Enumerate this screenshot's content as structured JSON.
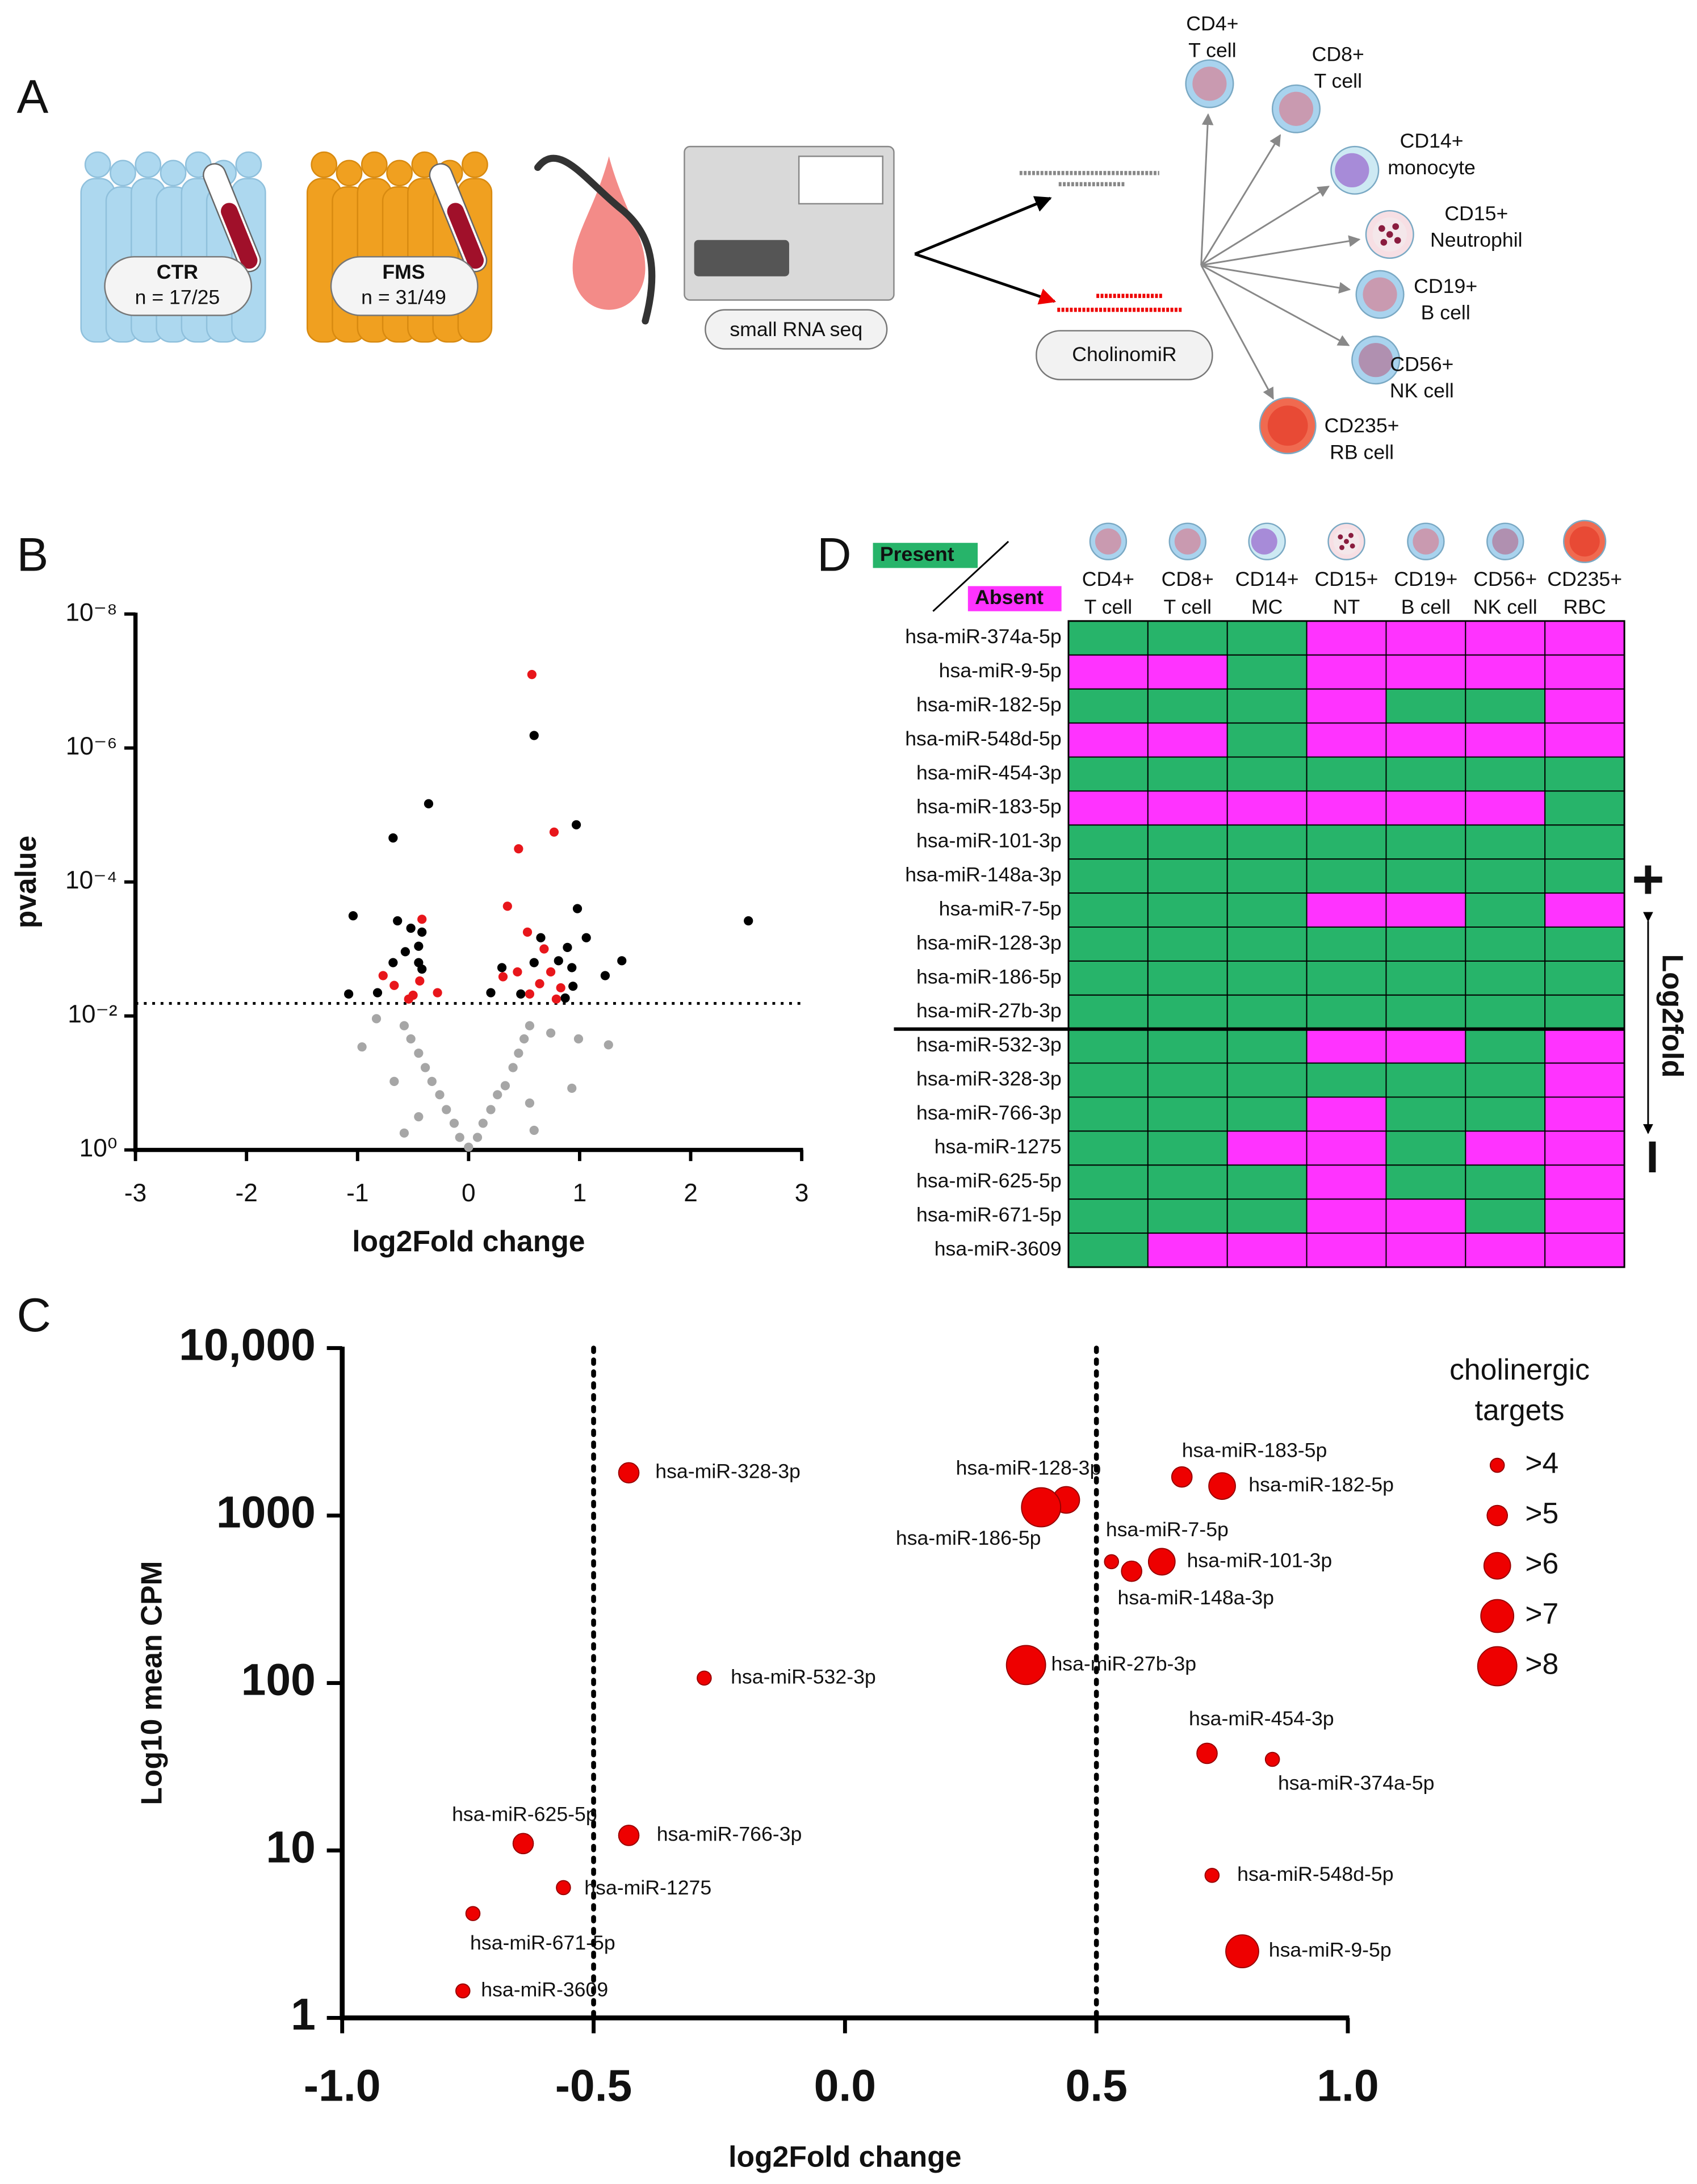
{
  "panel_a": {
    "letter": "A",
    "groups": [
      {
        "name": "CTR",
        "n": "n = 17/25"
      },
      {
        "name": "FMS",
        "n": "n = 31/49"
      }
    ],
    "method": "small RNA seq",
    "target": "CholinomiR",
    "cells": [
      [
        "CD4+",
        "T cell"
      ],
      [
        "CD8+",
        "T cell"
      ],
      [
        "CD14+",
        "monocyte"
      ],
      [
        "CD15+",
        "Neutrophil"
      ],
      [
        "CD19+",
        "B cell"
      ],
      [
        "CD56+",
        "NK cell"
      ],
      [
        "CD235+",
        "RB cell"
      ]
    ]
  },
  "chart_data": [
    {
      "panel": "B",
      "type": "scatter",
      "xlabel": "log2Fold change",
      "ylabel": "pvalue",
      "xlim": [
        -3,
        3
      ],
      "ylim": [
        1,
        1e-08
      ],
      "ylog": true,
      "xticks": [
        -3,
        -2,
        -1,
        0,
        1,
        2,
        3
      ],
      "yticks": [
        {
          "value": 1,
          "label": "10⁰"
        },
        {
          "value": 0.01,
          "label": "10⁻²"
        },
        {
          "value": 0.0001,
          "label": "10⁻⁴"
        },
        {
          "value": 1e-06,
          "label": "10⁻⁶"
        },
        {
          "value": 1e-08,
          "label": "10⁻⁸"
        }
      ],
      "hline": 0.0065,
      "series": [
        {
          "color": "#a6a6a6",
          "x": [
            0,
            -0.08,
            0.08,
            -0.13,
            0.13,
            -0.2,
            0.2,
            -0.26,
            0.26,
            -0.33,
            0.33,
            -0.39,
            0.4,
            -0.45,
            0.45,
            -0.52,
            0.5,
            -0.58,
            0.55,
            0.74,
            0.99,
            1.26,
            -0.83,
            -0.96,
            -0.67,
            0.55,
            0.93,
            -0.45,
            0.59,
            -0.58
          ],
          "values": [
            0.91,
            0.65,
            0.65,
            0.4,
            0.4,
            0.25,
            0.25,
            0.15,
            0.15,
            0.095,
            0.11,
            0.059,
            0.059,
            0.036,
            0.036,
            0.022,
            0.022,
            0.014,
            0.014,
            0.018,
            0.022,
            0.027,
            0.011,
            0.029,
            0.095,
            0.2,
            0.12,
            0.32,
            0.51,
            0.56
          ]
        },
        {
          "color": "#000000",
          "x": [
            0.59,
            -0.36,
            0.97,
            -0.68,
            -1.04,
            -0.64,
            -0.52,
            -0.42,
            -0.45,
            -0.57,
            -0.68,
            -0.45,
            -0.42,
            0.98,
            0.65,
            0.89,
            1.06,
            1.38,
            1.23,
            0.81,
            0.59,
            0.3,
            0.93,
            0.2,
            0.47,
            0.94,
            2.52,
            -1.08,
            -0.82,
            0.87
          ],
          "values": [
            6.5e-07,
            6.8e-06,
            1.4e-05,
            2.2e-05,
            0.00032,
            0.00038,
            0.00049,
            0.00056,
            0.00091,
            0.0011,
            0.0016,
            0.0016,
            0.002,
            0.00025,
            0.00068,
            0.00095,
            0.00068,
            0.0015,
            0.0025,
            0.0015,
            0.0016,
            0.0019,
            0.0019,
            0.0045,
            0.0047,
            0.0036,
            0.00038,
            0.0047,
            0.0045,
            0.0054
          ]
        },
        {
          "color": "#e8161b",
          "x": [
            0.57,
            0.77,
            0.45,
            0.35,
            -0.42,
            0.53,
            0.68,
            -0.77,
            0.44,
            0.31,
            0.74,
            -0.44,
            -0.67,
            -0.5,
            -0.28,
            0.64,
            0.55,
            0.83,
            0.79,
            -0.54
          ],
          "values": [
            8e-08,
            1.8e-05,
            3.2e-05,
            0.00023,
            0.00036,
            0.00056,
            0.001,
            0.0025,
            0.0022,
            0.0026,
            0.0022,
            0.003,
            0.0035,
            0.0049,
            0.0045,
            0.0033,
            0.0047,
            0.0038,
            0.0056,
            0.0056
          ]
        }
      ]
    },
    {
      "panel": "C",
      "type": "bubble",
      "xlabel": "log2Fold change",
      "ylabel": "Log10  mean CPM",
      "xlim": [
        -1,
        1
      ],
      "ylim": [
        1,
        10000
      ],
      "ylog": true,
      "xticks": [
        {
          "value": -1,
          "label": "-1.0"
        },
        -0.5,
        {
          "value": 0,
          "label": "0.0"
        },
        0.5,
        {
          "value": 1,
          "label": "1.0"
        }
      ],
      "yticks": [
        1,
        10,
        100,
        1000,
        {
          "value": 10000,
          "label": "10,000"
        }
      ],
      "vlines": [
        -0.5,
        0.5
      ],
      "color": "#ee0000",
      "labels": [
        "hsa-miR-328-3p",
        "hsa-miR-128-3p",
        "hsa-miR-186-5p",
        "hsa-miR-183-5p",
        "hsa-miR-182-5p",
        "hsa-miR-7-5p",
        "hsa-miR-148a-3p",
        "hsa-miR-101-3p",
        "hsa-miR-532-3p",
        "hsa-miR-27b-3p",
        "hsa-miR-454-3p",
        "hsa-miR-374a-5p",
        "hsa-miR-625-5p",
        "hsa-miR-766-3p",
        "hsa-miR-1275",
        "hsa-miR-548d-5p",
        "hsa-miR-671-5p",
        "hsa-miR-9-5p",
        "hsa-miR-3609"
      ],
      "x": [
        -0.43,
        0.44,
        0.39,
        0.67,
        0.75,
        0.53,
        0.57,
        0.63,
        -0.28,
        0.36,
        0.72,
        0.85,
        -0.64,
        -0.43,
        -0.56,
        0.73,
        -0.74,
        0.79,
        -0.76
      ],
      "values": [
        1800,
        1240,
        1120,
        1700,
        1500,
        530,
        465,
        530,
        107,
        128,
        38,
        35,
        11,
        12.3,
        6,
        7.1,
        4.2,
        2.5,
        1.45
      ],
      "sizes": [
        5,
        6,
        8,
        5,
        6,
        4,
        5,
        6,
        4,
        8,
        5,
        4,
        5,
        5,
        4,
        4,
        4,
        7,
        4
      ],
      "size_legend": {
        "title": [
          "cholinergic",
          "targets"
        ],
        "ticks": [
          {
            "value": 4,
            "label": ">4"
          },
          {
            "value": 5,
            "label": ">5"
          },
          {
            "value": 6,
            "label": ">6"
          },
          {
            "value": 7,
            "label": ">7"
          },
          {
            "value": 8,
            "label": ">8"
          }
        ]
      }
    }
  ],
  "panel_d": {
    "letter": "D",
    "legend": [
      {
        "label": "Present",
        "color": "#27b46a"
      },
      {
        "label": "Absent",
        "color": "#ff33ff"
      }
    ],
    "columns": [
      [
        "CD4+",
        "T cell"
      ],
      [
        "CD8+",
        "T cell"
      ],
      [
        "CD14+",
        "MC"
      ],
      [
        "CD15+",
        "NT"
      ],
      [
        "CD19+",
        "B cell"
      ],
      [
        "CD56+",
        "NK cell"
      ],
      [
        "CD235+",
        "RBC"
      ]
    ],
    "rows": [
      "hsa-miR-374a-5p",
      "hsa-miR-9-5p",
      "hsa-miR-182-5p",
      "hsa-miR-548d-5p",
      "hsa-miR-454-3p",
      "hsa-miR-183-5p",
      "hsa-miR-101-3p",
      "hsa-miR-148a-3p",
      "hsa-miR-7-5p",
      "hsa-miR-128-3p",
      "hsa-miR-186-5p",
      "hsa-miR-27b-3p",
      "hsa-miR-532-3p",
      "hsa-miR-328-3p",
      "hsa-miR-766-3p",
      "hsa-miR-1275",
      "hsa-miR-625-5p",
      "hsa-miR-671-5p",
      "hsa-miR-3609"
    ],
    "values": [
      [
        1,
        1,
        1,
        0,
        0,
        0,
        0
      ],
      [
        0,
        0,
        1,
        0,
        0,
        0,
        0
      ],
      [
        1,
        1,
        1,
        0,
        1,
        1,
        0
      ],
      [
        0,
        0,
        1,
        0,
        0,
        0,
        0
      ],
      [
        1,
        1,
        1,
        1,
        1,
        1,
        1
      ],
      [
        0,
        0,
        0,
        0,
        0,
        0,
        1
      ],
      [
        1,
        1,
        1,
        1,
        1,
        1,
        1
      ],
      [
        1,
        1,
        1,
        1,
        1,
        1,
        1
      ],
      [
        1,
        1,
        1,
        0,
        0,
        1,
        0
      ],
      [
        1,
        1,
        1,
        1,
        1,
        1,
        1
      ],
      [
        1,
        1,
        1,
        1,
        1,
        1,
        1
      ],
      [
        1,
        1,
        1,
        1,
        1,
        1,
        1
      ],
      [
        1,
        1,
        1,
        0,
        0,
        1,
        0
      ],
      [
        1,
        1,
        1,
        1,
        1,
        1,
        0
      ],
      [
        1,
        1,
        1,
        0,
        1,
        1,
        0
      ],
      [
        1,
        1,
        0,
        0,
        1,
        0,
        0
      ],
      [
        1,
        1,
        1,
        0,
        1,
        1,
        0
      ],
      [
        1,
        1,
        1,
        0,
        0,
        1,
        0
      ],
      [
        1,
        0,
        0,
        0,
        0,
        0,
        0
      ]
    ],
    "side_label": "Log2fold",
    "plus": "+",
    "minus": "−"
  }
}
